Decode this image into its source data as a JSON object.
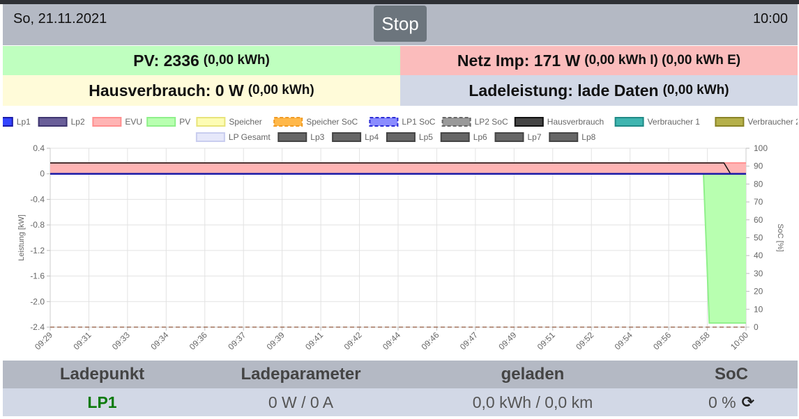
{
  "header": {
    "date": "So, 21.11.2021",
    "time": "10:00",
    "stop_label": "Stop"
  },
  "tiles": {
    "pv": {
      "main": "PV: 2336",
      "sub": "(0,00 kWh)"
    },
    "netz": {
      "main": "Netz Imp: 171 W",
      "sub": "(0,00 kWh I) (0,00 kWh E)"
    },
    "haus": {
      "main": "Hausverbrauch: 0 W",
      "sub": "(0,00 kWh)"
    },
    "lade": {
      "main": "Ladeleistung: lade Daten",
      "sub": "(0,00 kWh)"
    }
  },
  "legend": [
    {
      "label": "Lp1",
      "fill": "#3344ff",
      "stroke": "#1a1aa8",
      "dashed": false
    },
    {
      "label": "Lp2",
      "fill": "#6a5f99",
      "stroke": "#3f3570",
      "dashed": false
    },
    {
      "label": "EVU",
      "fill": "#ffb4b4",
      "stroke": "#ff8f8f",
      "dashed": false
    },
    {
      "label": "PV",
      "fill": "#b8ffb0",
      "stroke": "#8ff08a",
      "dashed": false
    },
    {
      "label": "Speicher",
      "fill": "#fdfcb4",
      "stroke": "#e8e47a",
      "dashed": false
    },
    {
      "label": "Speicher SoC",
      "fill": "#ffb84a",
      "stroke": "#f09a22",
      "dashed": true
    },
    {
      "label": "LP1 SoC",
      "fill": "#8a8cff",
      "stroke": "#2a2ad6",
      "dashed": true
    },
    {
      "label": "LP2 SoC",
      "fill": "#9a9a9a",
      "stroke": "#666666",
      "dashed": true
    },
    {
      "label": "Hausverbrauch",
      "fill": "#444444",
      "stroke": "#111111",
      "dashed": false
    },
    {
      "label": "Verbraucher 1",
      "fill": "#3fb5b0",
      "stroke": "#1f8a86",
      "dashed": false
    },
    {
      "label": "Verbraucher 2",
      "fill": "#b5b04a",
      "stroke": "#8a8426",
      "dashed": false
    },
    {
      "label": "LP Gesamt",
      "fill": "#e6e8fa",
      "stroke": "#c9cdef",
      "dashed": false
    },
    {
      "label": "Lp3",
      "fill": "#666666",
      "stroke": "#444444",
      "dashed": false
    },
    {
      "label": "Lp4",
      "fill": "#666666",
      "stroke": "#444444",
      "dashed": false
    },
    {
      "label": "Lp5",
      "fill": "#666666",
      "stroke": "#444444",
      "dashed": false
    },
    {
      "label": "Lp6",
      "fill": "#666666",
      "stroke": "#444444",
      "dashed": false
    },
    {
      "label": "Lp7",
      "fill": "#666666",
      "stroke": "#444444",
      "dashed": false
    },
    {
      "label": "Lp8",
      "fill": "#666666",
      "stroke": "#444444",
      "dashed": false
    }
  ],
  "chart_data": {
    "type": "line",
    "ylabel": "Leistung [kW]",
    "y2label": "SoC [%]",
    "ylim": [
      -2.4,
      0.4
    ],
    "y2lim": [
      0,
      100
    ],
    "yticks": [
      "0.4",
      "0",
      "-0.4",
      "-0.8",
      "-1.2",
      "-1.6",
      "-2.0",
      "-2.4"
    ],
    "y2ticks": [
      "100",
      "90",
      "80",
      "70",
      "60",
      "50",
      "40",
      "30",
      "20",
      "10",
      "0"
    ],
    "xticks": [
      "09:29",
      "09:31",
      "09:33",
      "09:34",
      "09:36",
      "09:37",
      "09:39",
      "09:41",
      "09:42",
      "09:44",
      "09:46",
      "09:47",
      "09:49",
      "09:51",
      "09:52",
      "09:54",
      "09:56",
      "09:58",
      "10:00"
    ],
    "grid": true,
    "legend_position": "top",
    "series": [
      {
        "name": "EVU",
        "type": "area",
        "color": "#ff8f8f",
        "fill": "#ffb4b4",
        "points": [
          [
            0,
            0.17
          ],
          [
            18,
            0.17
          ]
        ]
      },
      {
        "name": "Hausverbrauch",
        "type": "line",
        "color": "#111111",
        "points": [
          [
            0,
            0.17
          ],
          [
            17.43,
            0.17
          ],
          [
            17.6,
            0.0
          ],
          [
            18,
            0.0
          ]
        ]
      },
      {
        "name": "Lp1",
        "type": "line",
        "color": "#1a1aa8",
        "points": [
          [
            0,
            0.0
          ],
          [
            18,
            0.0
          ]
        ]
      },
      {
        "name": "PV",
        "type": "area",
        "color": "#8ff08a",
        "fill": "#b8ffb0",
        "points": [
          [
            16.9,
            0.0
          ],
          [
            17.05,
            -2.336
          ],
          [
            18,
            -2.336
          ]
        ]
      },
      {
        "name": "LP2 SoC",
        "type": "line",
        "color": "#a0705a",
        "dashed": true,
        "axis": "y2",
        "points": [
          [
            0,
            0
          ],
          [
            18,
            0
          ]
        ]
      }
    ]
  },
  "table": {
    "headers": [
      "Ladepunkt",
      "Ladeparameter",
      "geladen",
      "SoC"
    ],
    "row": {
      "name": "LP1",
      "param": "0 W / 0 A",
      "charged": "0,0 kWh / 0,0 km",
      "soc": "0 %"
    }
  }
}
